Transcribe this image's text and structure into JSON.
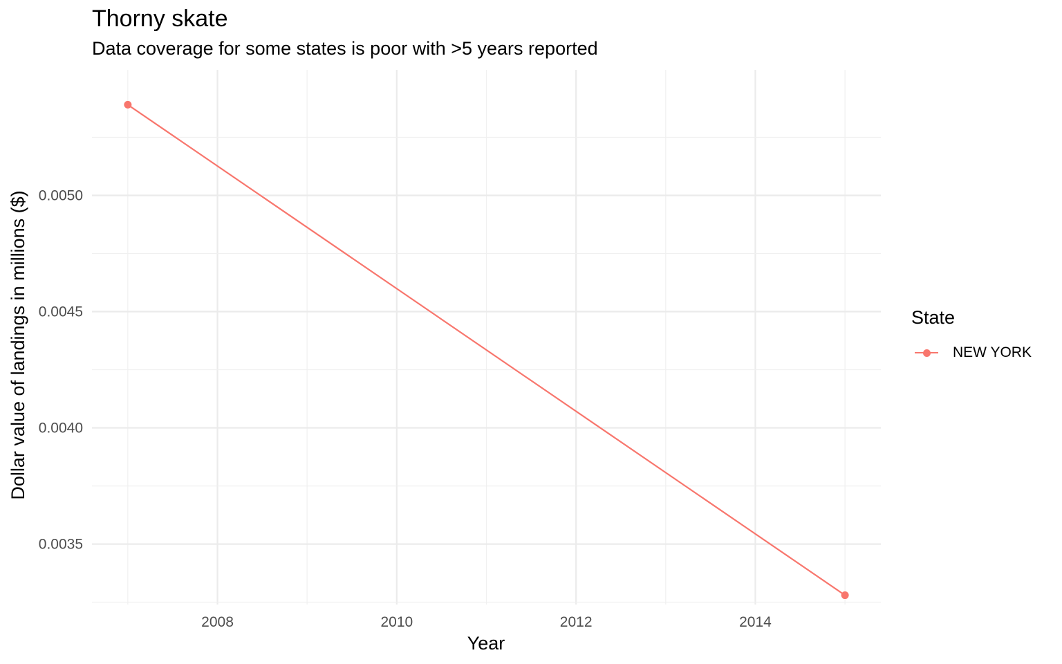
{
  "chart_data": {
    "type": "line",
    "title": "Thorny skate",
    "subtitle": "Data coverage for some states is poor with >5 years reported",
    "xlabel": "Year",
    "ylabel": "Dollar value of landings in millions ($)",
    "x_ticks": [
      "2008",
      "2010",
      "2012",
      "2014"
    ],
    "y_ticks": [
      "0.0035",
      "0.0040",
      "0.0045",
      "0.0050"
    ],
    "xlim": [
      2006.6,
      2015.4
    ],
    "ylim": [
      0.00324,
      0.00554
    ],
    "grid": true,
    "legend": {
      "title": "State",
      "position": "right"
    },
    "series": [
      {
        "name": "NEW YORK",
        "color": "#F8766D",
        "x": [
          2007,
          2015
        ],
        "y": [
          0.00539,
          0.00328
        ]
      }
    ]
  }
}
